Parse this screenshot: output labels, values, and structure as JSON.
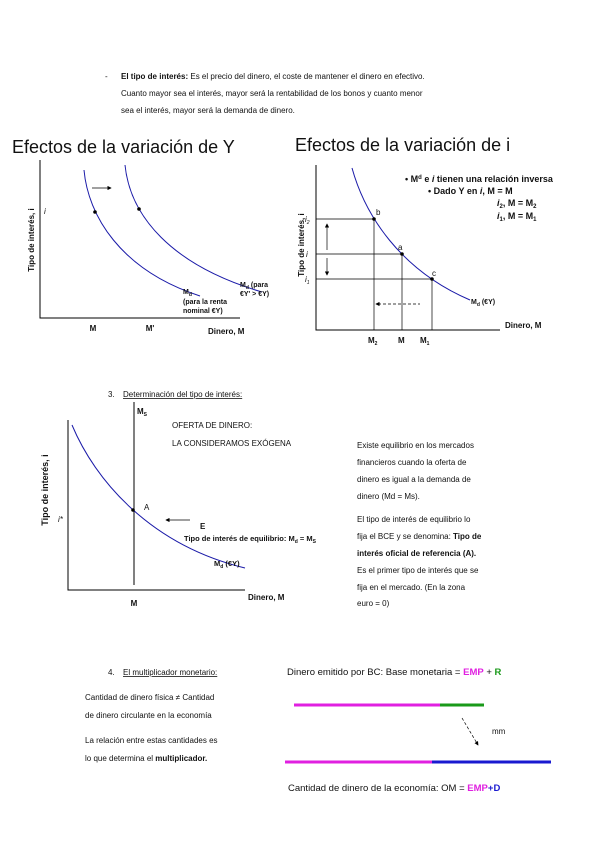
{
  "intro": {
    "bullet": "-",
    "term": "El tipo de interés:",
    "lines": [
      "Es el precio del dinero, el coste de mantener el dinero en efectivo.",
      "Cuanto mayor sea el interés, mayor será la rentabilidad de los bonos y cuanto menor",
      "sea el interés, mayor será la demanda de dinero."
    ]
  },
  "effects_y": {
    "title": "Efectos de la variación de Y",
    "y_axis": "Tipo de interés, i",
    "i": "i",
    "x_axis": "Dinero, M",
    "m": "M",
    "m_prime": "M'",
    "curve_shifted": {
      "symbol": "M",
      "sub": "d",
      "line1": "(para",
      "line2": "€Y' > €Y)"
    },
    "curve_base": {
      "symbol": "M",
      "sub": "d",
      "line1": "(para la renta",
      "line2": "nominal €Y)"
    }
  },
  "effects_i": {
    "title": "Efectos de la variación de i",
    "note1": {
      "a": "• M",
      "sup": "d",
      "b": " e ",
      "i": "i",
      "c": " tienen una relación inversa"
    },
    "note2": {
      "a": "• Dado Y en ",
      "i": "i",
      "b": ", M = M"
    },
    "note3": {
      "i": "i",
      "sub": "2",
      "b": ", M = M",
      "sub2": "2"
    },
    "note4": {
      "i": "i",
      "sub": "1",
      "b": ", M = M",
      "sub2": "1"
    },
    "y_axis": "Tipo de interés, i",
    "i2": {
      "i": "i",
      "sub": "2"
    },
    "i": "i",
    "i1": {
      "i": "i",
      "sub": "1"
    },
    "b": "b",
    "a": "a",
    "c": "c",
    "curve": {
      "symbol": "M",
      "sub": "d",
      "rest": " (€Y)"
    },
    "m2": {
      "m": "M",
      "sub": "2"
    },
    "m": "M",
    "m1": {
      "m": "M",
      "sub": "1"
    },
    "x_axis": "Dinero, M"
  },
  "section3": {
    "number": "3.",
    "title": "Determinación del tipo de interés:",
    "ms": {
      "m": "M",
      "sub": "S"
    },
    "supply1": "OFERTA DE DINERO:",
    "supply2": "LA CONSIDERAMOS EXÓGENA",
    "a": "A",
    "e": "E",
    "eq": {
      "text": "Tipo de interés de equilibrio: M",
      "sub1": "d",
      "mid": " = M",
      "sub2": "S"
    },
    "curve": {
      "symbol": "M",
      "sub": "d",
      "rest": " (€Y)"
    },
    "i_star": "i*",
    "m": "M",
    "x_axis": "Dinero, M",
    "y_axis": "Tipo de interés, i",
    "para1": [
      "Existe equilibrio en los mercados",
      "financieros cuando la oferta de",
      "dinero es igual a la demanda de",
      "dinero (Md = Ms)."
    ],
    "para2": {
      "l1": "El tipo de interés de equilibrio lo",
      "l2": "fija el BCE y se denomina: ",
      "l2b": "Tipo de",
      "l3b": "interés oficial de referencia (A).",
      "l4": "Es el primer tipo de interés que se",
      "l5": "fija en el mercado. (En la zona",
      "l6": "euro = 0)"
    }
  },
  "section4": {
    "number": "4.",
    "title": "El multiplicador monetario:",
    "base": {
      "text": "Dinero emitido por BC: Base monetaria = ",
      "emp": "EMP",
      "plus": " + ",
      "r": "R"
    },
    "left1": [
      "Cantidad de dinero física ≠ Cantidad",
      "de dinero circulante en la economía"
    ],
    "left2": {
      "l1": "La relación entre estas cantidades es",
      "l2": "lo que determina el ",
      "l2b": "multiplicador."
    },
    "mm": "mm",
    "om": {
      "text": "Cantidad de dinero de la economía: OM = ",
      "emp": "EMP",
      "d": "+D"
    }
  }
}
